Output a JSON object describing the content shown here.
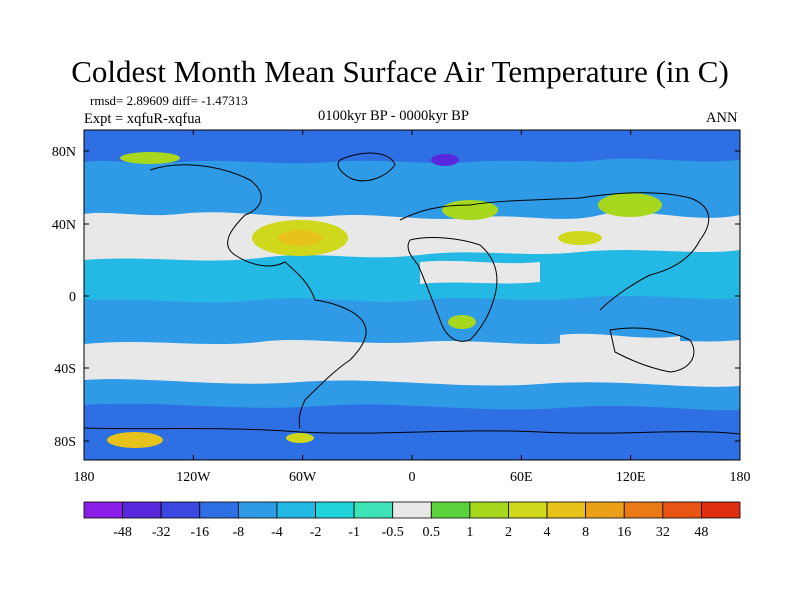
{
  "title": "Coldest Month Mean Surface Air Temperature (in C)",
  "stats": "rmsd= 2.89609 diff= -1.47313",
  "experiment": "Expt = xqfuR-xqfua",
  "period": "0100kyr BP - 0000kyr BP",
  "season": "ANN",
  "map": {
    "background_color": "#e8e8e8",
    "lat_ticks": [
      "80N",
      "40N",
      "0",
      "40S",
      "80S"
    ],
    "lon_ticks": [
      "180",
      "120W",
      "60W",
      "0",
      "60E",
      "120E",
      "180"
    ]
  },
  "colorbar": {
    "labels": [
      "-48",
      "-32",
      "-16",
      "-8",
      "-4",
      "-2",
      "-1",
      "-0.5",
      "0.5",
      "1",
      "2",
      "4",
      "8",
      "16",
      "32",
      "48"
    ],
    "colors": [
      "#8a1ee6",
      "#5a28dc",
      "#3b48e0",
      "#2f6fe4",
      "#2f9ae6",
      "#23b9e4",
      "#1fd3d8",
      "#3ee3b8",
      "#e8e8e8",
      "#5ad23c",
      "#a8d81e",
      "#cfd81a",
      "#e6c21a",
      "#eaa018",
      "#ea7a16",
      "#e85414",
      "#e02e12"
    ]
  }
}
